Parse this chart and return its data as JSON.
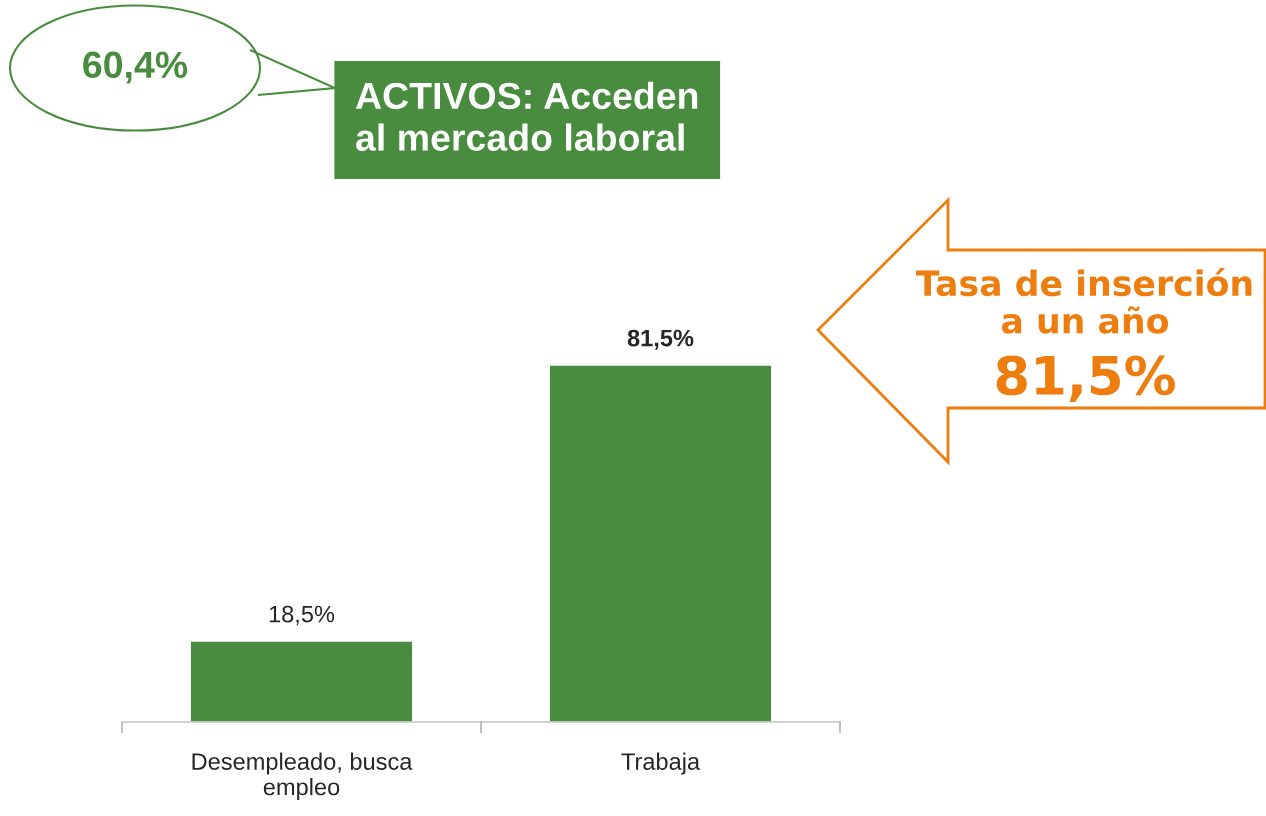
{
  "chart_data": {
    "type": "bar",
    "categories": [
      "Desempleado, busca\nempleo",
      "Trabaja"
    ],
    "values": [
      18.5,
      81.5
    ],
    "value_labels": [
      "18,5%",
      "81,5%"
    ],
    "color": "#4a8c3f",
    "grid": false,
    "legend": false,
    "tick_labels": "x",
    "annotations": [
      "60,4%",
      "ACTIVOS: Acceden\nal mercado laboral",
      "Tasa de inserción\na un año",
      "81,5%"
    ]
  }
}
